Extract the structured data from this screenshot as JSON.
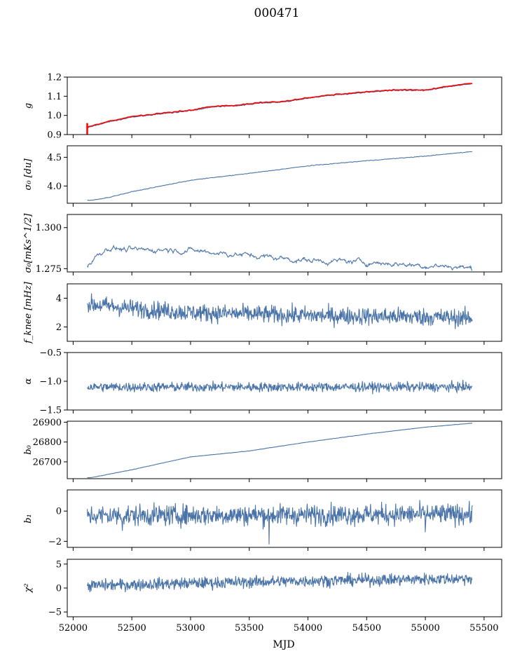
{
  "title": "000471",
  "chart_data": {
    "type": "line",
    "title": "000471",
    "xlabel": "MJD",
    "xlim": [
      51950,
      55650
    ],
    "xticks": [
      52000,
      52500,
      53000,
      53500,
      54000,
      54500,
      55000,
      55500
    ],
    "xtick_labels": [
      "52000",
      "52500",
      "53000",
      "53500",
      "54000",
      "54500",
      "55000",
      "55500"
    ],
    "x_start": 52120,
    "x_end": 55400,
    "line_color": "#4a74a8",
    "overlay_color": "#ff0000",
    "panels": [
      {
        "name": "g",
        "ylabel": "g",
        "ylim": [
          0.9,
          1.2
        ],
        "yticks": [
          0.9,
          1.0,
          1.1,
          1.2
        ],
        "ytick_labels": [
          "0.9",
          "1.0",
          "1.1",
          "1.2"
        ],
        "kind": "trend",
        "anchors": [
          [
            52120,
            0.935
          ],
          [
            52300,
            0.965
          ],
          [
            52500,
            0.99
          ],
          [
            52700,
            1.005
          ],
          [
            53000,
            1.025
          ],
          [
            53200,
            1.045
          ],
          [
            53400,
            1.05
          ],
          [
            53600,
            1.065
          ],
          [
            53800,
            1.07
          ],
          [
            54000,
            1.09
          ],
          [
            54200,
            1.105
          ],
          [
            54500,
            1.12
          ],
          [
            54700,
            1.13
          ],
          [
            55000,
            1.13
          ],
          [
            55200,
            1.15
          ],
          [
            55400,
            1.165
          ]
        ],
        "noise": 0.002,
        "overlay": true,
        "overlay_spike": [
          [
            52120,
            0.9
          ],
          [
            52120,
            0.96
          ]
        ]
      },
      {
        "name": "sigma0",
        "ylabel": "σ₀ [du]",
        "ylim": [
          3.7,
          4.7
        ],
        "yticks": [
          4.0,
          4.5
        ],
        "ytick_labels": [
          "4.0",
          "4.5"
        ],
        "kind": "trend",
        "anchors": [
          [
            52150,
            3.75
          ],
          [
            52300,
            3.8
          ],
          [
            52500,
            3.9
          ],
          [
            53000,
            4.1
          ],
          [
            53500,
            4.22
          ],
          [
            54000,
            4.35
          ],
          [
            54500,
            4.44
          ],
          [
            55000,
            4.52
          ],
          [
            55400,
            4.6
          ]
        ],
        "noise": 0.004
      },
      {
        "name": "sigma0-mks",
        "ylabel": "σ₀[mKs^1/2]",
        "ylim": [
          1.273,
          1.308
        ],
        "yticks": [
          1.275,
          1.3
        ],
        "ytick_labels": [
          "1.275",
          "1.300"
        ],
        "kind": "walk",
        "anchors": [
          [
            52120,
            1.277
          ],
          [
            52200,
            1.283
          ],
          [
            52300,
            1.288
          ],
          [
            52500,
            1.286
          ],
          [
            52800,
            1.287
          ],
          [
            53200,
            1.285
          ],
          [
            53500,
            1.283
          ],
          [
            54000,
            1.28
          ],
          [
            54500,
            1.279
          ],
          [
            55000,
            1.277
          ],
          [
            55300,
            1.276
          ],
          [
            55400,
            1.275
          ]
        ],
        "noise": 0.0015
      },
      {
        "name": "fknee",
        "ylabel": "f_knee [mHz]",
        "ylim": [
          1.0,
          5.0
        ],
        "yticks": [
          2,
          4
        ],
        "ytick_labels": [
          "2",
          "4"
        ],
        "kind": "noisy",
        "anchors": [
          [
            52120,
            3.6
          ],
          [
            52500,
            3.3
          ],
          [
            53000,
            3.0
          ],
          [
            54000,
            2.8
          ],
          [
            55000,
            2.7
          ],
          [
            55400,
            2.6
          ]
        ],
        "noise": 0.45
      },
      {
        "name": "alpha",
        "ylabel": "α",
        "ylim": [
          -1.5,
          -0.5
        ],
        "yticks": [
          -1.5,
          -1.0,
          -0.5
        ],
        "ytick_labels": [
          "−1.5",
          "−1.0",
          "−0.5"
        ],
        "kind": "noisy",
        "anchors": [
          [
            52120,
            -1.1
          ],
          [
            55400,
            -1.1
          ]
        ],
        "noise": 0.06
      },
      {
        "name": "b0",
        "ylabel": "b₀",
        "ylim": [
          26615,
          26905
        ],
        "yticks": [
          26700,
          26800,
          26900
        ],
        "ytick_labels": [
          "26700",
          "26800",
          "26900"
        ],
        "kind": "trend",
        "anchors": [
          [
            52150,
            26620
          ],
          [
            52500,
            26660
          ],
          [
            53000,
            26725
          ],
          [
            53500,
            26755
          ],
          [
            54000,
            26800
          ],
          [
            54500,
            26840
          ],
          [
            55000,
            26875
          ],
          [
            55400,
            26895
          ]
        ],
        "noise": 0.6
      },
      {
        "name": "b1",
        "ylabel": "b₁",
        "ylim": [
          -2.4,
          1.4
        ],
        "yticks": [
          -2,
          0
        ],
        "ytick_labels": [
          "−2",
          "0"
        ],
        "kind": "noisy",
        "anchors": [
          [
            52120,
            -0.3
          ],
          [
            55400,
            -0.2
          ]
        ],
        "noise": 0.5,
        "spikes": [
          [
            53670,
            -2.2
          ],
          [
            55000,
            -1.4
          ],
          [
            52420,
            -1.3
          ]
        ]
      },
      {
        "name": "chi2",
        "ylabel": "χ²",
        "ylim": [
          -6,
          6
        ],
        "yticks": [
          -5,
          0,
          5
        ],
        "ytick_labels": [
          "−5",
          "0",
          "5"
        ],
        "kind": "noisy",
        "anchors": [
          [
            52120,
            0.5
          ],
          [
            53000,
            1.0
          ],
          [
            54000,
            1.5
          ],
          [
            55400,
            2.0
          ]
        ],
        "noise": 0.9
      }
    ]
  }
}
